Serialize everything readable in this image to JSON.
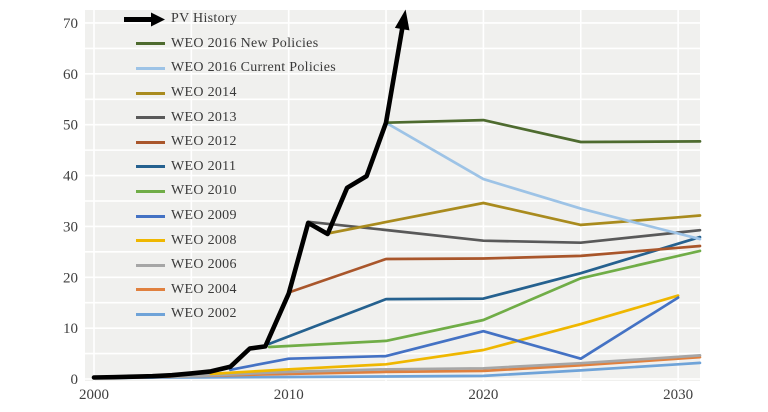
{
  "chart_data": {
    "type": "line",
    "title": "",
    "xlabel": "",
    "ylabel": "",
    "x_ticks": [
      2000,
      2010,
      2020,
      2030
    ],
    "y_ticks": [
      0,
      10,
      20,
      30,
      40,
      50,
      60,
      70
    ],
    "x_range": [
      1999.5,
      2031.15
    ],
    "y_range": [
      0,
      72.5
    ],
    "grid": {
      "on": true,
      "x_every": 5,
      "y_every": 5
    },
    "legend_position": "top-left-inside",
    "colors": {
      "plot_background": "#f0f0ee",
      "gridline": "#ffffff",
      "axis_text": "#3f3f3f",
      "legend_text": "#3a3a3a"
    },
    "series": [
      {
        "name": "PV History",
        "color": "#000000",
        "width": 4.6,
        "arrow_end": true,
        "to_edge": false,
        "points": [
          [
            2000,
            0.3
          ],
          [
            2001,
            0.35
          ],
          [
            2002,
            0.45
          ],
          [
            2003,
            0.55
          ],
          [
            2004,
            0.75
          ],
          [
            2005,
            1.1
          ],
          [
            2006,
            1.5
          ],
          [
            2007,
            2.4
          ],
          [
            2008,
            6.0
          ],
          [
            2008.8,
            6.4
          ],
          [
            2010,
            16.8
          ],
          [
            2011,
            30.7
          ],
          [
            2012,
            28.5
          ],
          [
            2013,
            37.6
          ],
          [
            2014,
            39.9
          ],
          [
            2015,
            50.4
          ],
          [
            2015.95,
            71.5
          ]
        ]
      },
      {
        "name": "WEO 2016 New Policies",
        "color": "#4e6b2f",
        "width": 2.7,
        "arrow_end": false,
        "to_edge": true,
        "points": [
          [
            2015,
            50.4
          ],
          [
            2020,
            50.9
          ],
          [
            2025,
            46.6
          ],
          [
            2030,
            46.7
          ]
        ]
      },
      {
        "name": "WEO 2016 Current Policies",
        "color": "#9dc3e6",
        "width": 2.7,
        "arrow_end": false,
        "to_edge": true,
        "points": [
          [
            2015,
            50.4
          ],
          [
            2020,
            39.3
          ],
          [
            2025,
            33.5
          ],
          [
            2030,
            28.6
          ]
        ]
      },
      {
        "name": "WEO 2014",
        "color": "#a98b1e",
        "width": 2.7,
        "arrow_end": false,
        "to_edge": true,
        "points": [
          [
            2012,
            28.6
          ],
          [
            2020,
            34.6
          ],
          [
            2025,
            30.3
          ],
          [
            2030,
            31.8
          ]
        ]
      },
      {
        "name": "WEO 2013",
        "color": "#595959",
        "width": 2.7,
        "arrow_end": false,
        "to_edge": true,
        "points": [
          [
            2011,
            30.9
          ],
          [
            2015,
            29.3
          ],
          [
            2020,
            27.2
          ],
          [
            2025,
            26.8
          ],
          [
            2030,
            28.8
          ]
        ]
      },
      {
        "name": "WEO 2012",
        "color": "#a9562b",
        "width": 2.7,
        "arrow_end": false,
        "to_edge": true,
        "points": [
          [
            2010,
            17.0
          ],
          [
            2015,
            23.6
          ],
          [
            2020,
            23.7
          ],
          [
            2025,
            24.2
          ],
          [
            2030,
            25.8
          ]
        ]
      },
      {
        "name": "WEO 2011",
        "color": "#25618f",
        "width": 2.7,
        "arrow_end": false,
        "to_edge": true,
        "points": [
          [
            2009,
            6.9
          ],
          [
            2015,
            15.7
          ],
          [
            2020,
            15.8
          ],
          [
            2025,
            20.8
          ],
          [
            2030,
            26.6
          ]
        ]
      },
      {
        "name": "WEO 2010",
        "color": "#70ad47",
        "width": 2.7,
        "arrow_end": false,
        "to_edge": true,
        "points": [
          [
            2009,
            6.3
          ],
          [
            2015,
            7.5
          ],
          [
            2020,
            11.6
          ],
          [
            2025,
            19.8
          ],
          [
            2030,
            24.2
          ]
        ]
      },
      {
        "name": "WEO 2009",
        "color": "#4472c4",
        "width": 2.7,
        "arrow_end": false,
        "to_edge": false,
        "points": [
          [
            2007,
            1.8
          ],
          [
            2010,
            4.0
          ],
          [
            2015,
            4.5
          ],
          [
            2020,
            9.4
          ],
          [
            2025,
            4.0
          ],
          [
            2030,
            16.0
          ]
        ]
      },
      {
        "name": "WEO 2008",
        "color": "#efb700",
        "width": 2.7,
        "arrow_end": false,
        "to_edge": false,
        "points": [
          [
            2006,
            1.0
          ],
          [
            2010,
            1.9
          ],
          [
            2015,
            2.9
          ],
          [
            2020,
            5.7
          ],
          [
            2025,
            10.8
          ],
          [
            2030,
            16.4
          ]
        ]
      },
      {
        "name": "WEO 2006",
        "color": "#a6a6a6",
        "width": 2.7,
        "arrow_end": false,
        "to_edge": true,
        "points": [
          [
            2004,
            0.4
          ],
          [
            2010,
            1.4
          ],
          [
            2015,
            1.9
          ],
          [
            2020,
            2.1
          ],
          [
            2025,
            3.1
          ],
          [
            2030,
            4.35
          ]
        ]
      },
      {
        "name": "WEO 2004",
        "color": "#e0803e",
        "width": 2.7,
        "arrow_end": false,
        "to_edge": true,
        "points": [
          [
            2002,
            0.3
          ],
          [
            2010,
            1.0
          ],
          [
            2015,
            1.4
          ],
          [
            2020,
            1.6
          ],
          [
            2025,
            2.7
          ],
          [
            2030,
            4.0
          ]
        ]
      },
      {
        "name": "WEO 2002",
        "color": "#6fa3d8",
        "width": 2.7,
        "arrow_end": false,
        "to_edge": true,
        "points": [
          [
            2000,
            0.2
          ],
          [
            2010,
            0.4
          ],
          [
            2015,
            0.5
          ],
          [
            2020,
            0.6
          ],
          [
            2025,
            1.7
          ],
          [
            2030,
            2.9
          ]
        ]
      }
    ]
  }
}
